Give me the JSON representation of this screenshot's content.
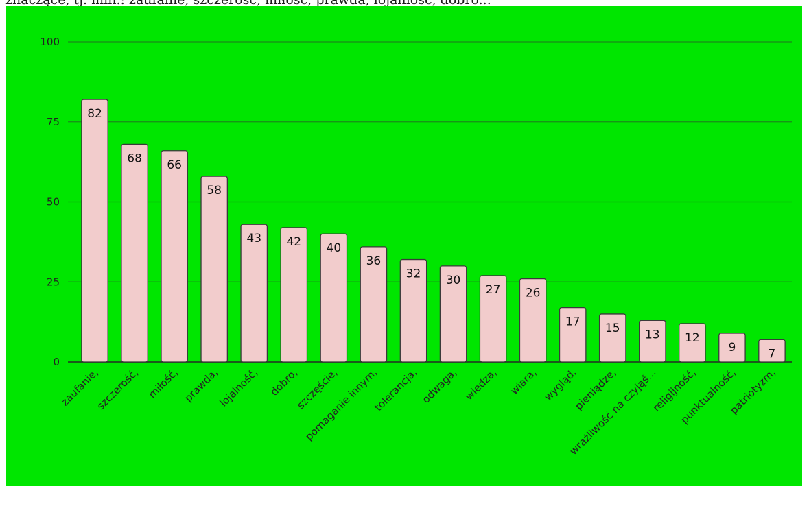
{
  "caption": "znaczące, tj. min.: zaufanie, szczerość, miłość, prawda, lojalność, dobro...",
  "colors": {
    "background": "#00e600",
    "bar_fill": "#f2cccc",
    "bar_stroke": "#3a3a3a",
    "gridline": "#1a8a1a",
    "baseline": "#1a5a1a"
  },
  "chart_data": {
    "type": "bar",
    "title": "",
    "xlabel": "",
    "ylabel": "",
    "ylim": [
      0,
      100
    ],
    "yticks": [
      0,
      25,
      50,
      75,
      100
    ],
    "grid": true,
    "categories": [
      "zaufanie,",
      "szczerość,",
      "miłość,",
      "prawda,",
      "lojalność,",
      "dobro,",
      "szczęście,",
      "pomaganie innym,",
      "tolerancja,",
      "odwaga,",
      "wiedza,",
      "wiara,",
      "wygląd,",
      "pieniądze,",
      "wrażliwość na czyjąś...",
      "religijność,",
      "punktualność,",
      "patriotyzm,"
    ],
    "values": [
      82,
      68,
      66,
      58,
      43,
      42,
      40,
      36,
      32,
      30,
      27,
      26,
      17,
      15,
      13,
      12,
      9,
      7
    ]
  }
}
